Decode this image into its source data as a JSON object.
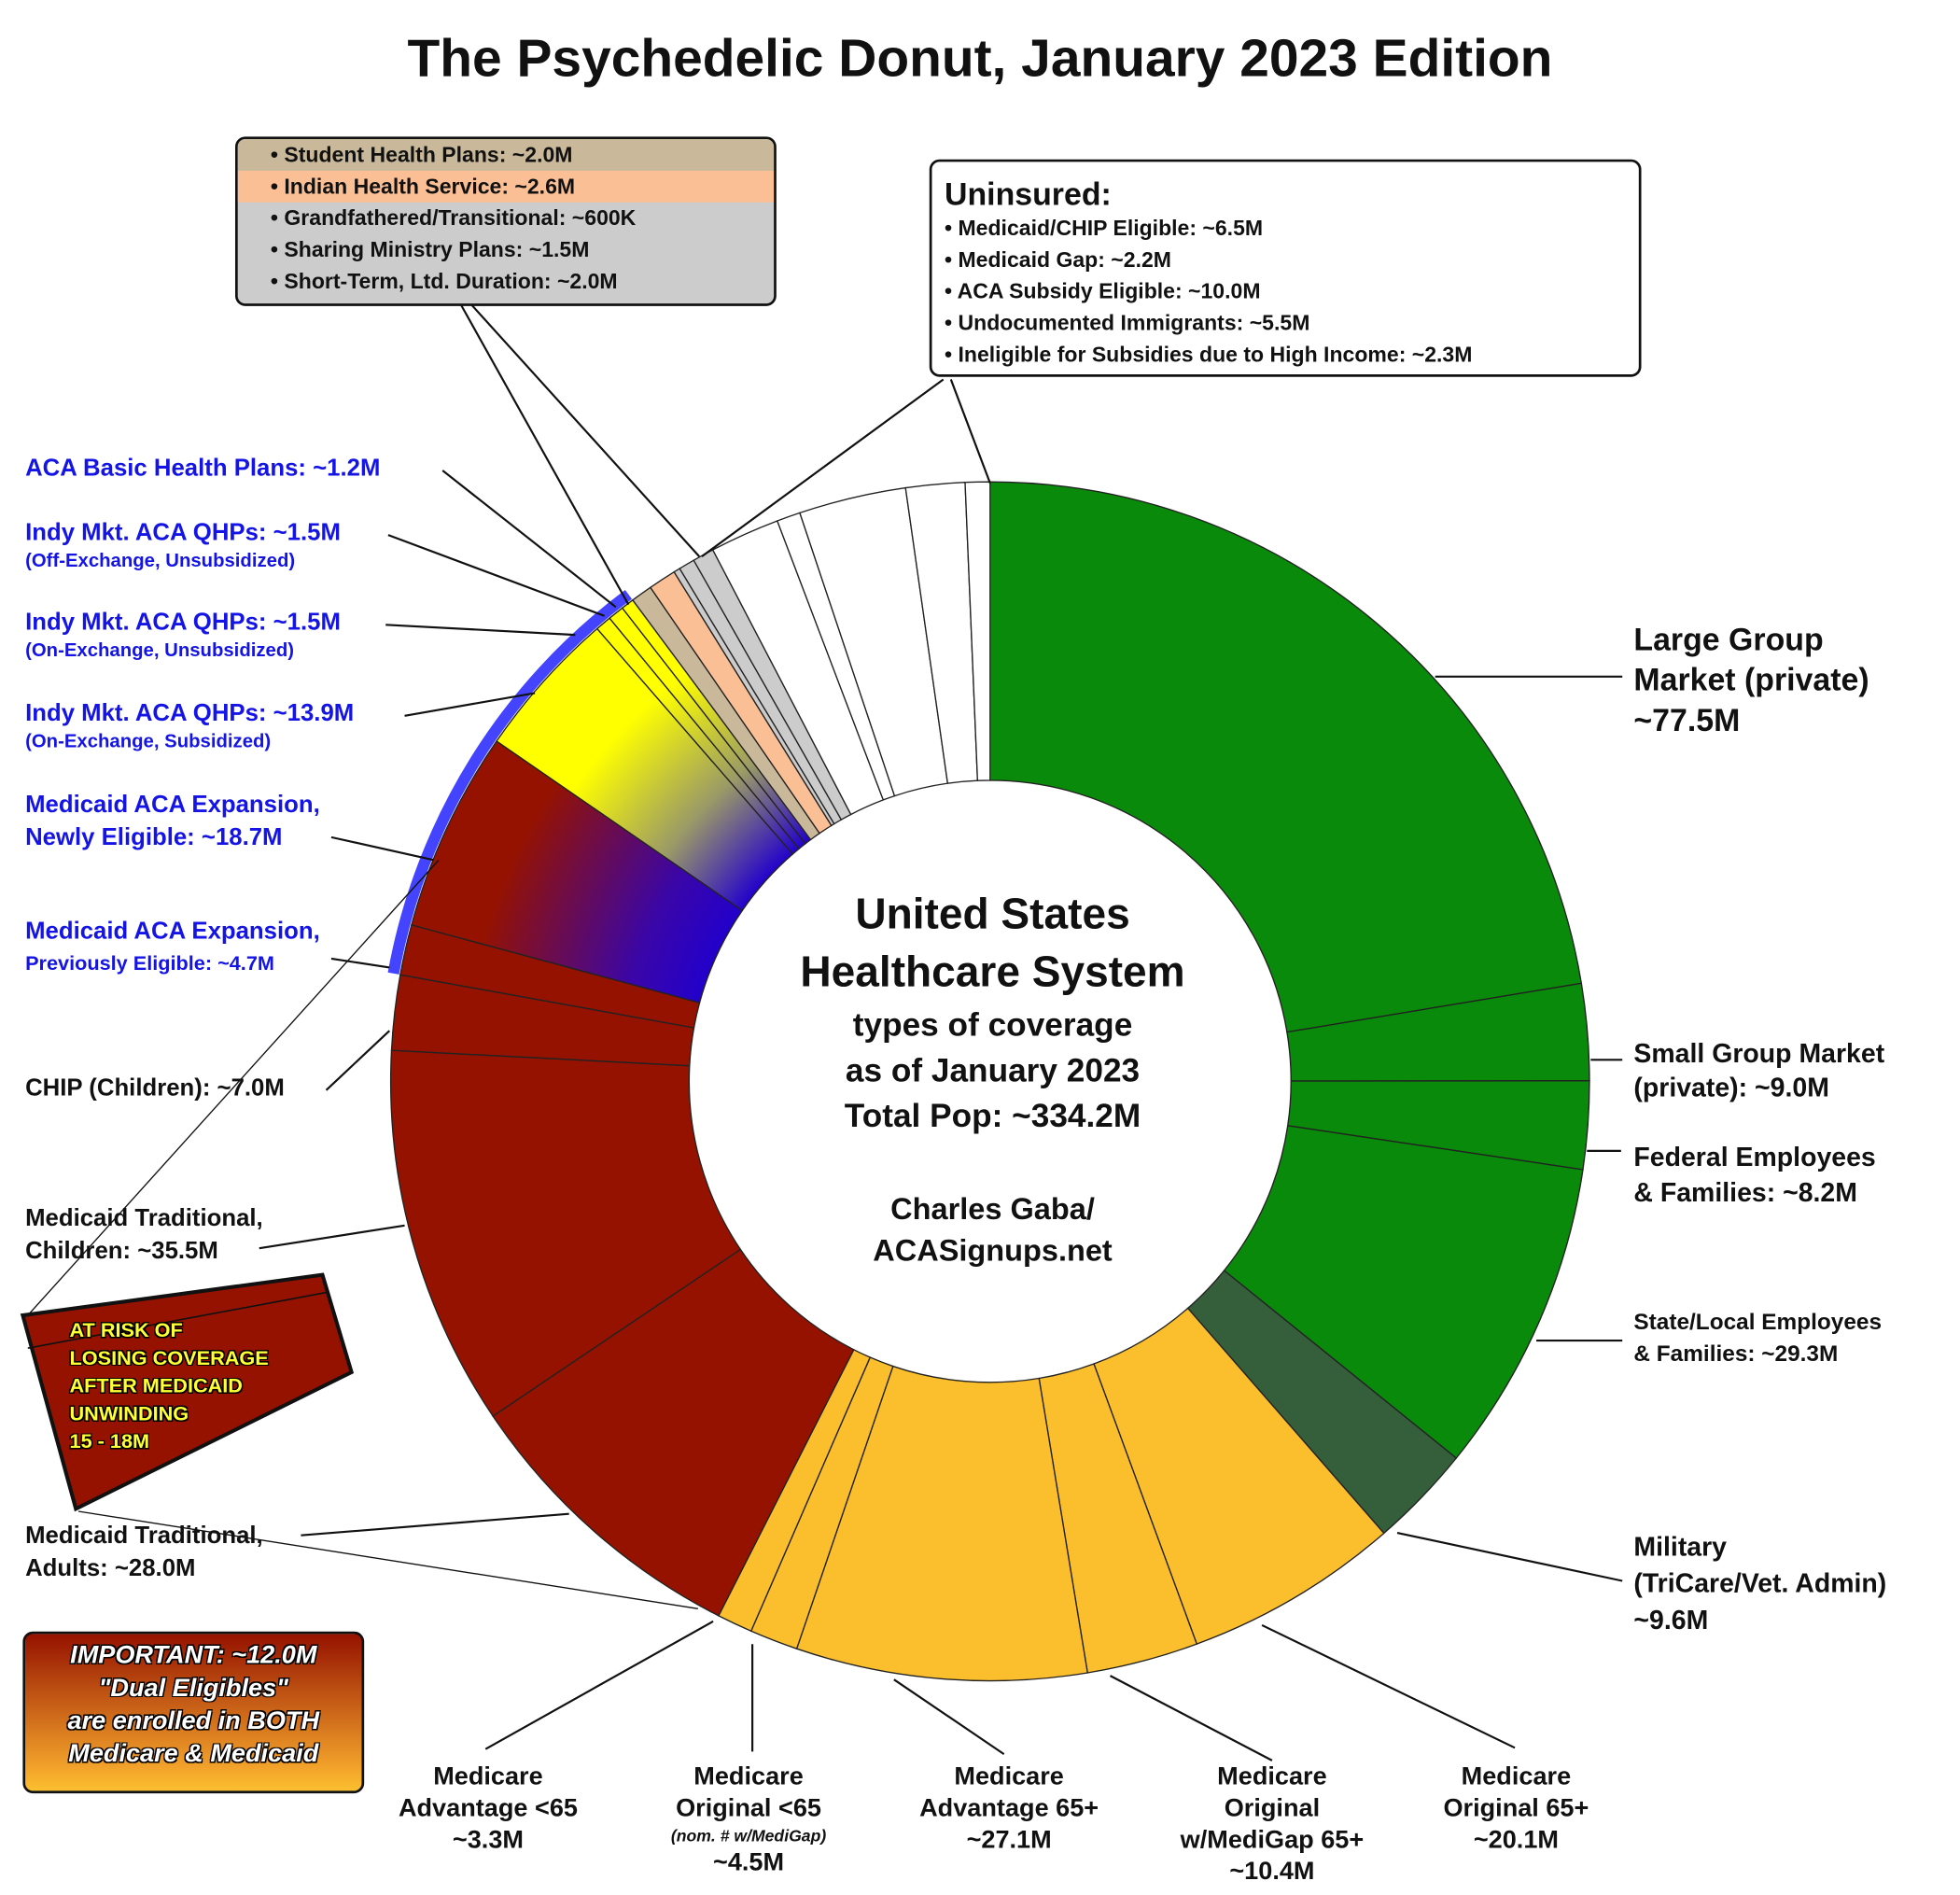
{
  "chart_data": {
    "type": "pie",
    "title": "The Psychedelic Donut, January 2023 Edition",
    "center_text": [
      "United States",
      "Healthcare System",
      "types of coverage",
      "as of January 2023",
      "Total Pop: ~334.2M"
    ],
    "credit": [
      "Charles Gaba/",
      "ACASignups.net"
    ],
    "unit": "M",
    "slices": [
      {
        "label": "Large Group Market (private)",
        "value": 77.5,
        "color": "#0a8a0a"
      },
      {
        "label": "Small Group Market (private)",
        "value": 9.0,
        "color": "#0a8a0a"
      },
      {
        "label": "Federal Employees & Families",
        "value": 8.2,
        "color": "#0a8a0a"
      },
      {
        "label": "State/Local Employees & Families",
        "value": 29.3,
        "color": "#0a8a0a"
      },
      {
        "label": "Military (TriCare/Vet. Admin)",
        "value": 9.6,
        "color": "#355e3b"
      },
      {
        "label": "Medicare Original 65+",
        "value": 20.1,
        "color": "#fbbf2e"
      },
      {
        "label": "Medicare Original w/MediGap 65+",
        "value": 10.4,
        "color": "#fbbf2e"
      },
      {
        "label": "Medicare Advantage 65+",
        "value": 27.1,
        "color": "#fbbf2e"
      },
      {
        "label": "Medicare Original <65",
        "value": 4.5,
        "color": "#fbbf2e"
      },
      {
        "label": "Medicare Advantage <65",
        "value": 3.3,
        "color": "#fbbf2e"
      },
      {
        "label": "Medicaid Traditional, Adults",
        "value": 28.0,
        "color": "#951200"
      },
      {
        "label": "Medicaid Traditional, Children",
        "value": 35.5,
        "color": "#951200"
      },
      {
        "label": "CHIP (Children)",
        "value": 7.0,
        "color": "#951200"
      },
      {
        "label": "Medicaid ACA Expansion, Previously Eligible",
        "value": 4.7,
        "color": "#951200"
      },
      {
        "label": "Medicaid ACA Expansion, Newly Eligible",
        "value": 18.7,
        "color": "#951200",
        "gradient_to": "#2200cc"
      },
      {
        "label": "Indy Mkt. ACA QHPs (On-Exchange, Subsidized)",
        "value": 13.9,
        "color": "#ffff00",
        "gradient_to": "#2200cc"
      },
      {
        "label": "Indy Mkt. ACA QHPs (On-Exchange, Unsubsidized)",
        "value": 1.5,
        "color": "#ffff00",
        "gradient_to": "#2200cc"
      },
      {
        "label": "Indy Mkt. ACA QHPs (Off-Exchange, Unsubsidized)",
        "value": 1.5,
        "color": "#ffff00",
        "gradient_to": "#2200cc"
      },
      {
        "label": "ACA Basic Health Plans",
        "value": 1.2,
        "color": "#ffff00",
        "gradient_to": "#2200cc"
      },
      {
        "label": "Student Health Plans",
        "value": 2.0,
        "color": "#c9b99a"
      },
      {
        "label": "Indian Health Service",
        "value": 2.6,
        "color": "#fbbf96"
      },
      {
        "label": "Grandfathered/Transitional",
        "value": 0.6,
        "color": "#cccccc"
      },
      {
        "label": "Sharing Ministry Plans",
        "value": 1.5,
        "color": "#cccccc"
      },
      {
        "label": "Short-Term, Ltd. Duration",
        "value": 2.0,
        "color": "#cccccc"
      },
      {
        "label": "Uninsured: Medicaid/CHIP Eligible",
        "value": 6.5,
        "color": "#ffffff"
      },
      {
        "label": "Uninsured: Medicaid Gap",
        "value": 2.2,
        "color": "#ffffff"
      },
      {
        "label": "Uninsured: ACA Subsidy Eligible",
        "value": 10.0,
        "color": "#ffffff"
      },
      {
        "label": "Uninsured: Undocumented Immigrants",
        "value": 5.5,
        "color": "#ffffff"
      },
      {
        "label": "Uninsured: Ineligible for Subsidies due to High Income",
        "value": 2.3,
        "color": "#ffffff"
      }
    ],
    "aca_highlight_color": "#4444ff"
  },
  "labels": {
    "large_group": [
      "Large Group",
      "Market (private)",
      "~77.5M"
    ],
    "small_group": [
      "Small Group Market",
      "(private): ~9.0M"
    ],
    "federal": [
      "Federal Employees",
      "& Families: ~8.2M"
    ],
    "state_local": [
      "State/Local Employees",
      "& Families: ~29.3M"
    ],
    "military": [
      "Military",
      "(TriCare/Vet. Admin)",
      "~9.6M"
    ],
    "medicare_orig_65": [
      "Medicare",
      "Original 65+",
      "~20.1M"
    ],
    "medigap": [
      "Medicare",
      "Original",
      "w/MediGap 65+",
      "~10.4M"
    ],
    "adv_65": [
      "Medicare",
      "Advantage 65+",
      "~27.1M"
    ],
    "orig_u65": [
      "Medicare",
      "Original <65",
      "(nom. # w/MediGap)",
      "~4.5M"
    ],
    "adv_u65": [
      "Medicare",
      "Advantage <65",
      "~3.3M"
    ],
    "adults": [
      "Medicaid Traditional,",
      "Adults: ~28.0M"
    ],
    "children": [
      "Medicaid Traditional,",
      "Children: ~35.5M"
    ],
    "chip": "CHIP (Children): ~7.0M",
    "prev_elig": [
      "Medicaid ACA Expansion,",
      "Previously Eligible: ~4.7M"
    ],
    "newly_elig": [
      "Medicaid ACA Expansion,",
      "Newly Eligible: ~18.7M"
    ],
    "qhp_sub": [
      "Indy Mkt. ACA QHPs: ~13.9M",
      "(On-Exchange, Subsidized)"
    ],
    "qhp_on_unsub": [
      "Indy Mkt. ACA QHPs: ~1.5M",
      "(On-Exchange, Unsubsidized)"
    ],
    "qhp_off_unsub": [
      "Indy Mkt. ACA QHPs: ~1.5M",
      "(Off-Exchange, Unsubsidized)"
    ],
    "bhp": "ACA Basic Health Plans: ~1.2M"
  },
  "other_box": [
    "• Student Health Plans: ~2.0M",
    "• Indian Health Service: ~2.6M",
    "• Grandfathered/Transitional: ~600K",
    "• Sharing Ministry Plans: ~1.5M",
    "• Short-Term, Ltd. Duration: ~2.0M"
  ],
  "uninsured_box": {
    "heading": "Uninsured:",
    "items": [
      "• Medicaid/CHIP Eligible: ~6.5M",
      "• Medicaid Gap: ~2.2M",
      "• ACA Subsidy Eligible: ~10.0M",
      "• Undocumented Immigrants: ~5.5M",
      "• Ineligible for Subsidies due to High Income: ~2.3M"
    ]
  },
  "at_risk": [
    "AT RISK OF",
    "LOSING COVERAGE",
    "AFTER MEDICAID",
    "UNWINDING",
    "15 - 18M"
  ],
  "important": [
    "IMPORTANT: ~12.0M",
    "\"Dual Eligibles\"",
    "are enrolled in BOTH",
    "Medicare & Medicaid"
  ]
}
